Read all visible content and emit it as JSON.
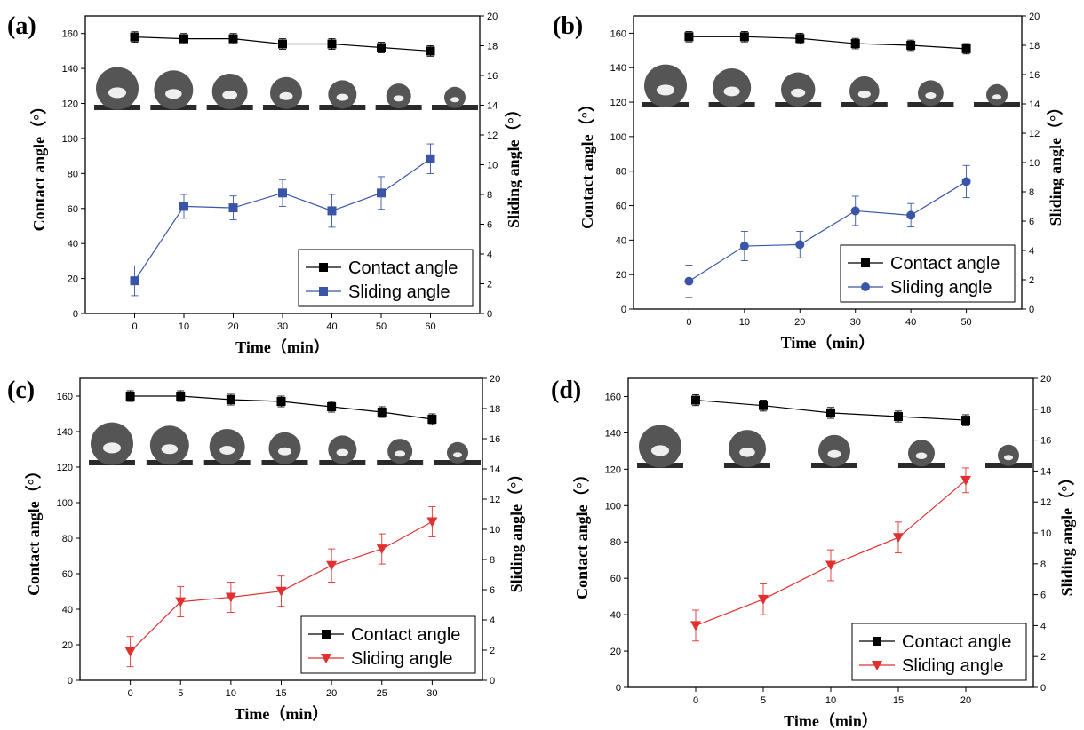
{
  "figure": {
    "background": "#ffffff"
  },
  "colors": {
    "contact": "#000000",
    "blue": "#3a55a8",
    "red": "#e03030",
    "drop": "#555555",
    "axis": "#000000"
  },
  "chart_data": [
    {
      "panel_label": "(a)",
      "type": "line",
      "xlabel": "Time（min）",
      "ylabel": "Contact angle（°）",
      "y2label": "Sliding angle（°）",
      "x": [
        0,
        10,
        20,
        30,
        40,
        50,
        60
      ],
      "xlim": [
        -10,
        70
      ],
      "xticks": [
        0,
        10,
        20,
        30,
        40,
        50,
        60
      ],
      "ylim": [
        0,
        170
      ],
      "yticks": [
        0,
        20,
        40,
        60,
        80,
        100,
        120,
        140,
        160
      ],
      "y2lim": [
        0,
        20
      ],
      "y2ticks": [
        0,
        2,
        4,
        6,
        8,
        10,
        12,
        14,
        16,
        18,
        20
      ],
      "legend_position": "bottom-right",
      "droplet_images": 7,
      "series": [
        {
          "name": "Contact angle",
          "axis": "left",
          "marker": "square",
          "color": "#000000",
          "values": [
            158,
            157,
            157,
            154,
            154,
            152,
            150
          ],
          "errors": [
            3,
            3,
            3,
            3,
            3,
            3,
            3
          ]
        },
        {
          "name": "Sliding angle",
          "axis": "right",
          "marker": "square",
          "color": "#3a55a8",
          "values": [
            2.2,
            7.2,
            7.1,
            8.1,
            6.9,
            8.1,
            10.4
          ],
          "errors": [
            1.0,
            0.8,
            0.8,
            0.9,
            1.1,
            1.1,
            1.0
          ]
        }
      ]
    },
    {
      "panel_label": "(b)",
      "type": "line",
      "xlabel": "Time（min）",
      "ylabel": "Contact angle（°）",
      "y2label": "Sliding angle（°）",
      "x": [
        0,
        10,
        20,
        30,
        40,
        50
      ],
      "xlim": [
        -10,
        60
      ],
      "xticks": [
        0,
        10,
        20,
        30,
        40,
        50
      ],
      "ylim": [
        0,
        170
      ],
      "yticks": [
        0,
        20,
        40,
        60,
        80,
        100,
        120,
        140,
        160
      ],
      "y2lim": [
        0,
        20
      ],
      "y2ticks": [
        0,
        2,
        4,
        6,
        8,
        10,
        12,
        14,
        16,
        18,
        20
      ],
      "legend_position": "bottom-right",
      "droplet_images": 6,
      "series": [
        {
          "name": "Contact angle",
          "axis": "left",
          "marker": "square",
          "color": "#000000",
          "values": [
            158,
            158,
            157,
            154,
            153,
            151
          ],
          "errors": [
            3,
            3,
            3,
            3,
            3,
            3
          ]
        },
        {
          "name": "Sliding angle",
          "axis": "right",
          "marker": "circle",
          "color": "#3a55a8",
          "values": [
            1.9,
            4.3,
            4.4,
            6.7,
            6.4,
            8.7
          ],
          "errors": [
            1.1,
            1.0,
            0.9,
            1.0,
            0.8,
            1.1
          ]
        }
      ]
    },
    {
      "panel_label": "(c)",
      "type": "line",
      "xlabel": "Time（min）",
      "ylabel": "Contact angle（°）",
      "y2label": "Sliding angle（°）",
      "x": [
        0,
        5,
        10,
        15,
        20,
        25,
        30
      ],
      "xlim": [
        -5,
        35
      ],
      "xticks": [
        0,
        5,
        10,
        15,
        20,
        25,
        30
      ],
      "ylim": [
        0,
        170
      ],
      "yticks": [
        0,
        20,
        40,
        60,
        80,
        100,
        120,
        140,
        160
      ],
      "y2lim": [
        0,
        20
      ],
      "y2ticks": [
        0,
        2,
        4,
        6,
        8,
        10,
        12,
        14,
        16,
        18,
        20
      ],
      "legend_position": "bottom-right",
      "droplet_images": 7,
      "series": [
        {
          "name": "Contact angle",
          "axis": "left",
          "marker": "square",
          "color": "#000000",
          "values": [
            160,
            160,
            158,
            157,
            154,
            151,
            147
          ],
          "errors": [
            3,
            3,
            3,
            3,
            3,
            3,
            3
          ]
        },
        {
          "name": "Sliding angle",
          "axis": "right",
          "marker": "triangle-down",
          "color": "#e03030",
          "values": [
            1.9,
            5.2,
            5.5,
            5.9,
            7.6,
            8.7,
            10.5
          ],
          "errors": [
            1.0,
            1.0,
            1.0,
            1.0,
            1.1,
            1.0,
            1.0
          ]
        }
      ]
    },
    {
      "panel_label": "(d)",
      "type": "line",
      "xlabel": "Time（min）",
      "ylabel": "Contact angle（°）",
      "y2label": "Sliding angle（°）",
      "x": [
        0,
        5,
        10,
        15,
        20
      ],
      "xlim": [
        -5,
        25
      ],
      "xticks": [
        0,
        5,
        10,
        15,
        20
      ],
      "ylim": [
        0,
        170
      ],
      "yticks": [
        0,
        20,
        40,
        60,
        80,
        100,
        120,
        140,
        160
      ],
      "y2lim": [
        0,
        20
      ],
      "y2ticks": [
        0,
        2,
        4,
        6,
        8,
        10,
        12,
        14,
        16,
        18,
        20
      ],
      "legend_position": "bottom-right",
      "droplet_images": 5,
      "series": [
        {
          "name": "Contact angle",
          "axis": "left",
          "marker": "square",
          "color": "#000000",
          "values": [
            158,
            155,
            151,
            149,
            147
          ],
          "errors": [
            3,
            3,
            3,
            3,
            3
          ]
        },
        {
          "name": "Sliding angle",
          "axis": "right",
          "marker": "triangle-down",
          "color": "#e03030",
          "values": [
            4.0,
            5.7,
            7.9,
            9.7,
            13.4
          ],
          "errors": [
            1.0,
            1.0,
            1.0,
            1.0,
            0.8
          ]
        }
      ]
    }
  ]
}
